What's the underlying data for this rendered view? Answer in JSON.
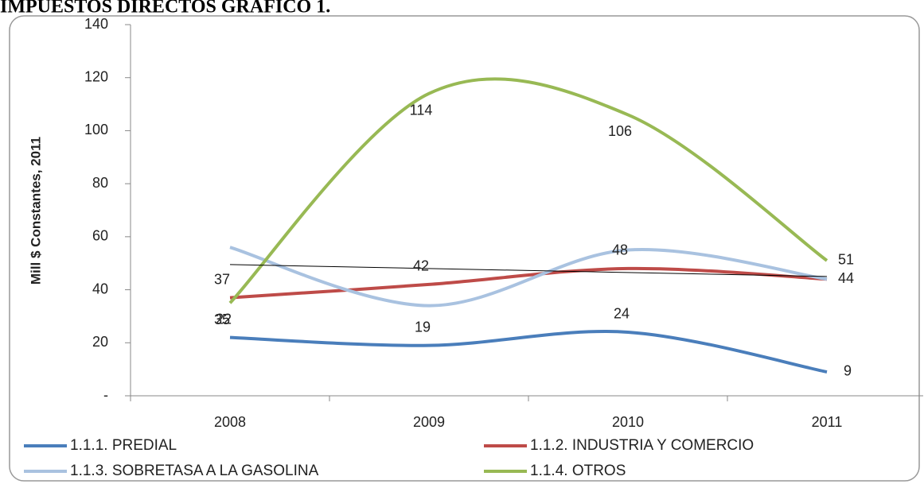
{
  "chart_data": {
    "type": "line",
    "title": "IMPUESTOS DIRECTOS GRAFICO 1.",
    "y_label": "Mill $ Constantes, 2011",
    "categories": [
      "2008",
      "2009",
      "2010",
      "2011"
    ],
    "series": [
      {
        "name": "1.1.1. PREDIAL",
        "color": "#4a7ebb",
        "values": [
          22,
          19,
          24,
          9
        ],
        "show_labels": true
      },
      {
        "name": "1.1.2. INDUSTRIA Y COMERCIO",
        "color": "#be4b48",
        "values": [
          37,
          42,
          48,
          44
        ],
        "show_labels": true
      },
      {
        "name": "1.1.3. SOBRETASA A LA GASOLINA",
        "color": "#a9c2e0",
        "values": [
          56,
          34,
          55,
          44
        ],
        "show_labels": false
      },
      {
        "name": "1.1.4. OTROS",
        "color": "#98b954",
        "values": [
          35,
          114,
          106,
          51
        ],
        "show_labels": true
      }
    ],
    "trendline": {
      "color": "#000000",
      "values": [
        49.5,
        45
      ]
    },
    "ylim": [
      0,
      140
    ],
    "yticks": [
      {
        "value": 0,
        "label": "-"
      },
      20,
      40,
      60,
      80,
      100,
      120,
      140
    ],
    "smooth": true
  }
}
